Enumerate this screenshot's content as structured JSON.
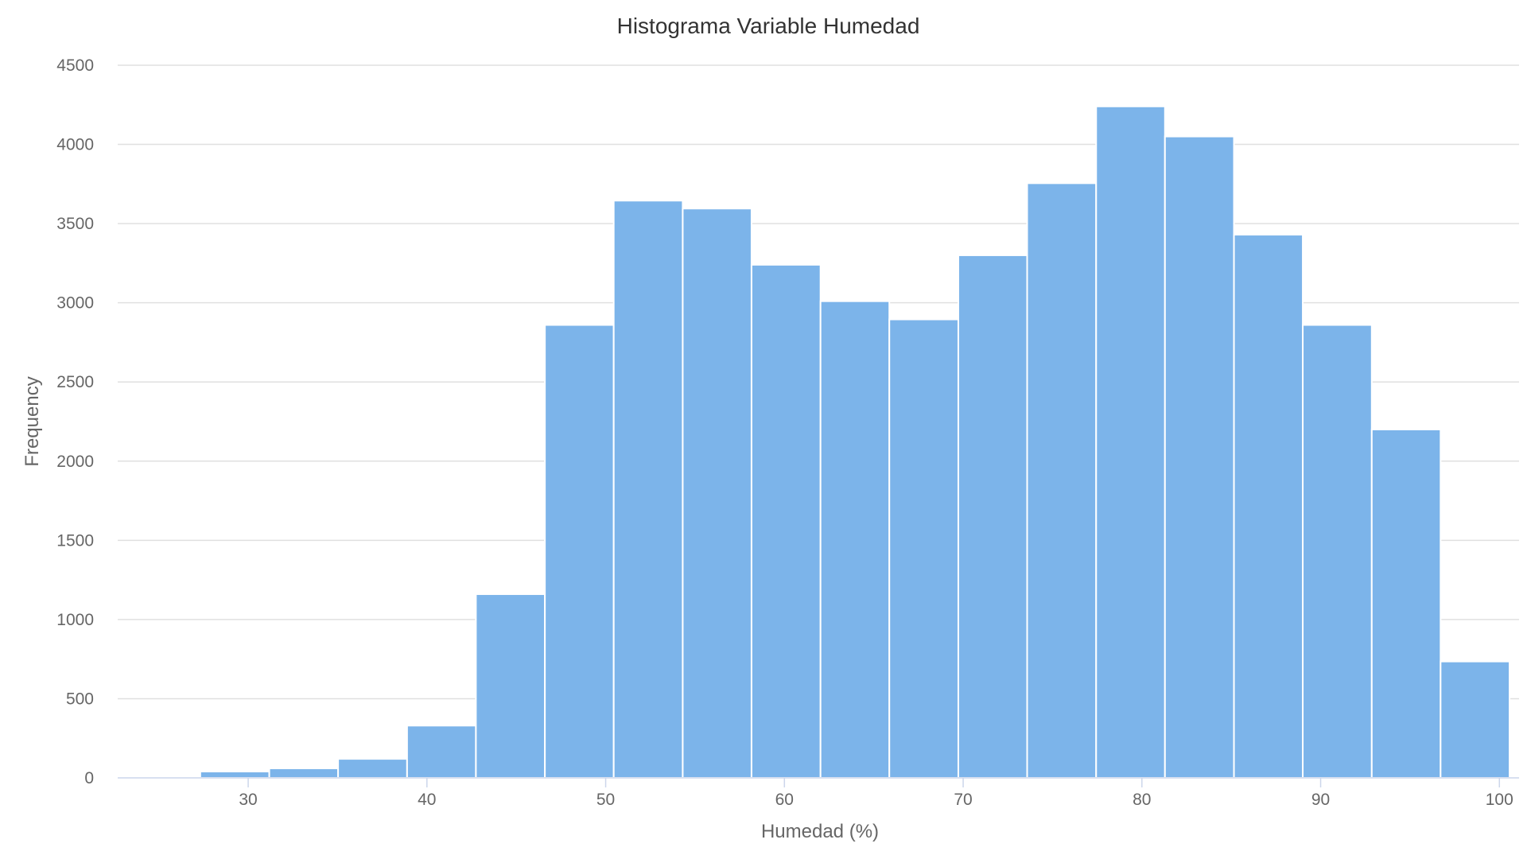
{
  "chart_data": {
    "type": "bar",
    "title": "Histograma Variable Humedad",
    "xlabel": "Humedad (%)",
    "ylabel": "Frequency",
    "bar_color": "#7cb4ea",
    "grid": true,
    "xlim": [
      22.7,
      101.1
    ],
    "ylim": [
      0,
      4500
    ],
    "x_ticks": [
      30,
      40,
      50,
      60,
      70,
      80,
      90,
      100
    ],
    "y_ticks": [
      0,
      500,
      1000,
      1500,
      2000,
      2500,
      3000,
      3500,
      4000,
      4500
    ],
    "bins": [
      {
        "start": 23.47,
        "end": 27.32,
        "value": 5
      },
      {
        "start": 27.32,
        "end": 31.18,
        "value": 40
      },
      {
        "start": 31.18,
        "end": 35.03,
        "value": 60
      },
      {
        "start": 35.03,
        "end": 38.89,
        "value": 120
      },
      {
        "start": 38.89,
        "end": 42.74,
        "value": 330
      },
      {
        "start": 42.74,
        "end": 46.6,
        "value": 1160
      },
      {
        "start": 46.6,
        "end": 50.45,
        "value": 2860
      },
      {
        "start": 50.45,
        "end": 54.31,
        "value": 3645
      },
      {
        "start": 54.31,
        "end": 58.16,
        "value": 3595
      },
      {
        "start": 58.16,
        "end": 62.02,
        "value": 3240
      },
      {
        "start": 62.02,
        "end": 65.87,
        "value": 3010
      },
      {
        "start": 65.87,
        "end": 69.73,
        "value": 2895
      },
      {
        "start": 69.73,
        "end": 73.58,
        "value": 3300
      },
      {
        "start": 73.58,
        "end": 77.44,
        "value": 3755
      },
      {
        "start": 77.44,
        "end": 81.29,
        "value": 4240
      },
      {
        "start": 81.29,
        "end": 85.15,
        "value": 4050
      },
      {
        "start": 85.15,
        "end": 89.0,
        "value": 3430
      },
      {
        "start": 89.0,
        "end": 92.86,
        "value": 2860
      },
      {
        "start": 92.86,
        "end": 96.71,
        "value": 2200
      },
      {
        "start": 96.71,
        "end": 100.57,
        "value": 735
      }
    ]
  }
}
